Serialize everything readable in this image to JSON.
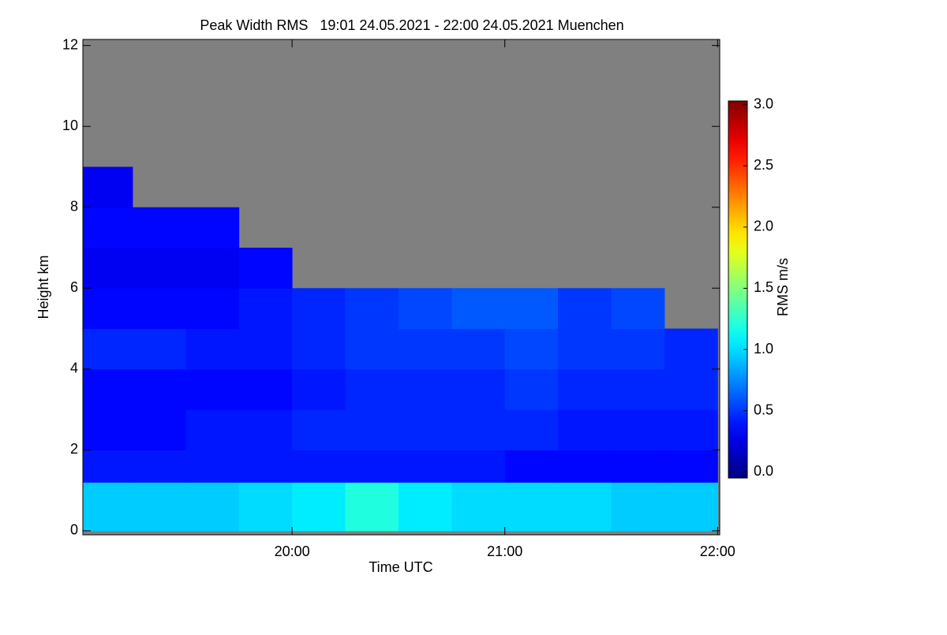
{
  "chart_data": {
    "type": "heatmap",
    "title": "Peak Width RMS   19:01 24.05.2021 - 22:00 24.05.2021 Muenchen",
    "x_label": "Time UTC",
    "y_label": "Height km",
    "colorbar_label": "RMS m/s",
    "x_edges": [
      19.0167,
      19.25,
      19.5,
      19.75,
      20.0,
      20.25,
      20.5,
      20.75,
      21.0,
      21.25,
      21.5,
      21.75,
      22.0
    ],
    "y_edges": [
      0,
      1.2,
      2,
      3,
      4,
      5,
      6,
      7,
      8,
      9,
      12
    ],
    "z": [
      [
        0.95,
        0.95,
        0.95,
        1.0,
        1.05,
        1.2,
        1.05,
        1.0,
        1.0,
        1.0,
        0.95,
        0.95
      ],
      [
        0.4,
        0.4,
        0.4,
        0.4,
        0.4,
        0.4,
        0.4,
        0.4,
        0.35,
        0.35,
        0.35,
        0.35
      ],
      [
        0.35,
        0.35,
        0.4,
        0.4,
        0.45,
        0.45,
        0.45,
        0.45,
        0.45,
        0.4,
        0.4,
        0.4
      ],
      [
        0.35,
        0.35,
        0.35,
        0.35,
        0.4,
        0.45,
        0.45,
        0.45,
        0.5,
        0.45,
        0.45,
        0.45
      ],
      [
        0.45,
        0.45,
        0.4,
        0.4,
        0.45,
        0.5,
        0.5,
        0.5,
        0.55,
        0.5,
        0.5,
        0.45
      ],
      [
        0.35,
        0.35,
        0.35,
        0.4,
        0.45,
        0.5,
        0.55,
        0.6,
        0.6,
        0.5,
        0.55,
        null
      ],
      [
        0.3,
        0.3,
        0.3,
        0.35,
        null,
        null,
        null,
        null,
        null,
        null,
        null,
        null
      ],
      [
        0.35,
        0.35,
        0.35,
        null,
        null,
        null,
        null,
        null,
        null,
        null,
        null,
        null
      ],
      [
        0.3,
        null,
        null,
        null,
        null,
        null,
        null,
        null,
        null,
        null,
        null,
        null
      ],
      [
        null,
        null,
        null,
        null,
        null,
        null,
        null,
        null,
        null,
        null,
        null,
        null
      ]
    ],
    "xlim": [
      19.0167,
      22.01
    ],
    "xticks": [
      {
        "value": 20,
        "label": "20:00"
      },
      {
        "value": 21,
        "label": "21:00"
      },
      {
        "value": 22,
        "label": "22:00"
      }
    ],
    "ylim": [
      -0.1,
      12.15
    ],
    "yticks": [
      0,
      2,
      4,
      6,
      8,
      10,
      12
    ],
    "zlim": [
      -0.05,
      3.03
    ],
    "zticks": [
      {
        "value": 0,
        "label": "0.0"
      },
      {
        "value": 0.5,
        "label": "0.5"
      },
      {
        "value": 1,
        "label": "1.0"
      },
      {
        "value": 1.5,
        "label": "1.5"
      },
      {
        "value": 2,
        "label": "2.0"
      },
      {
        "value": 2.5,
        "label": "2.5"
      },
      {
        "value": 3,
        "label": "3.0"
      }
    ],
    "colormap": "jet",
    "null_color": "#808080"
  }
}
